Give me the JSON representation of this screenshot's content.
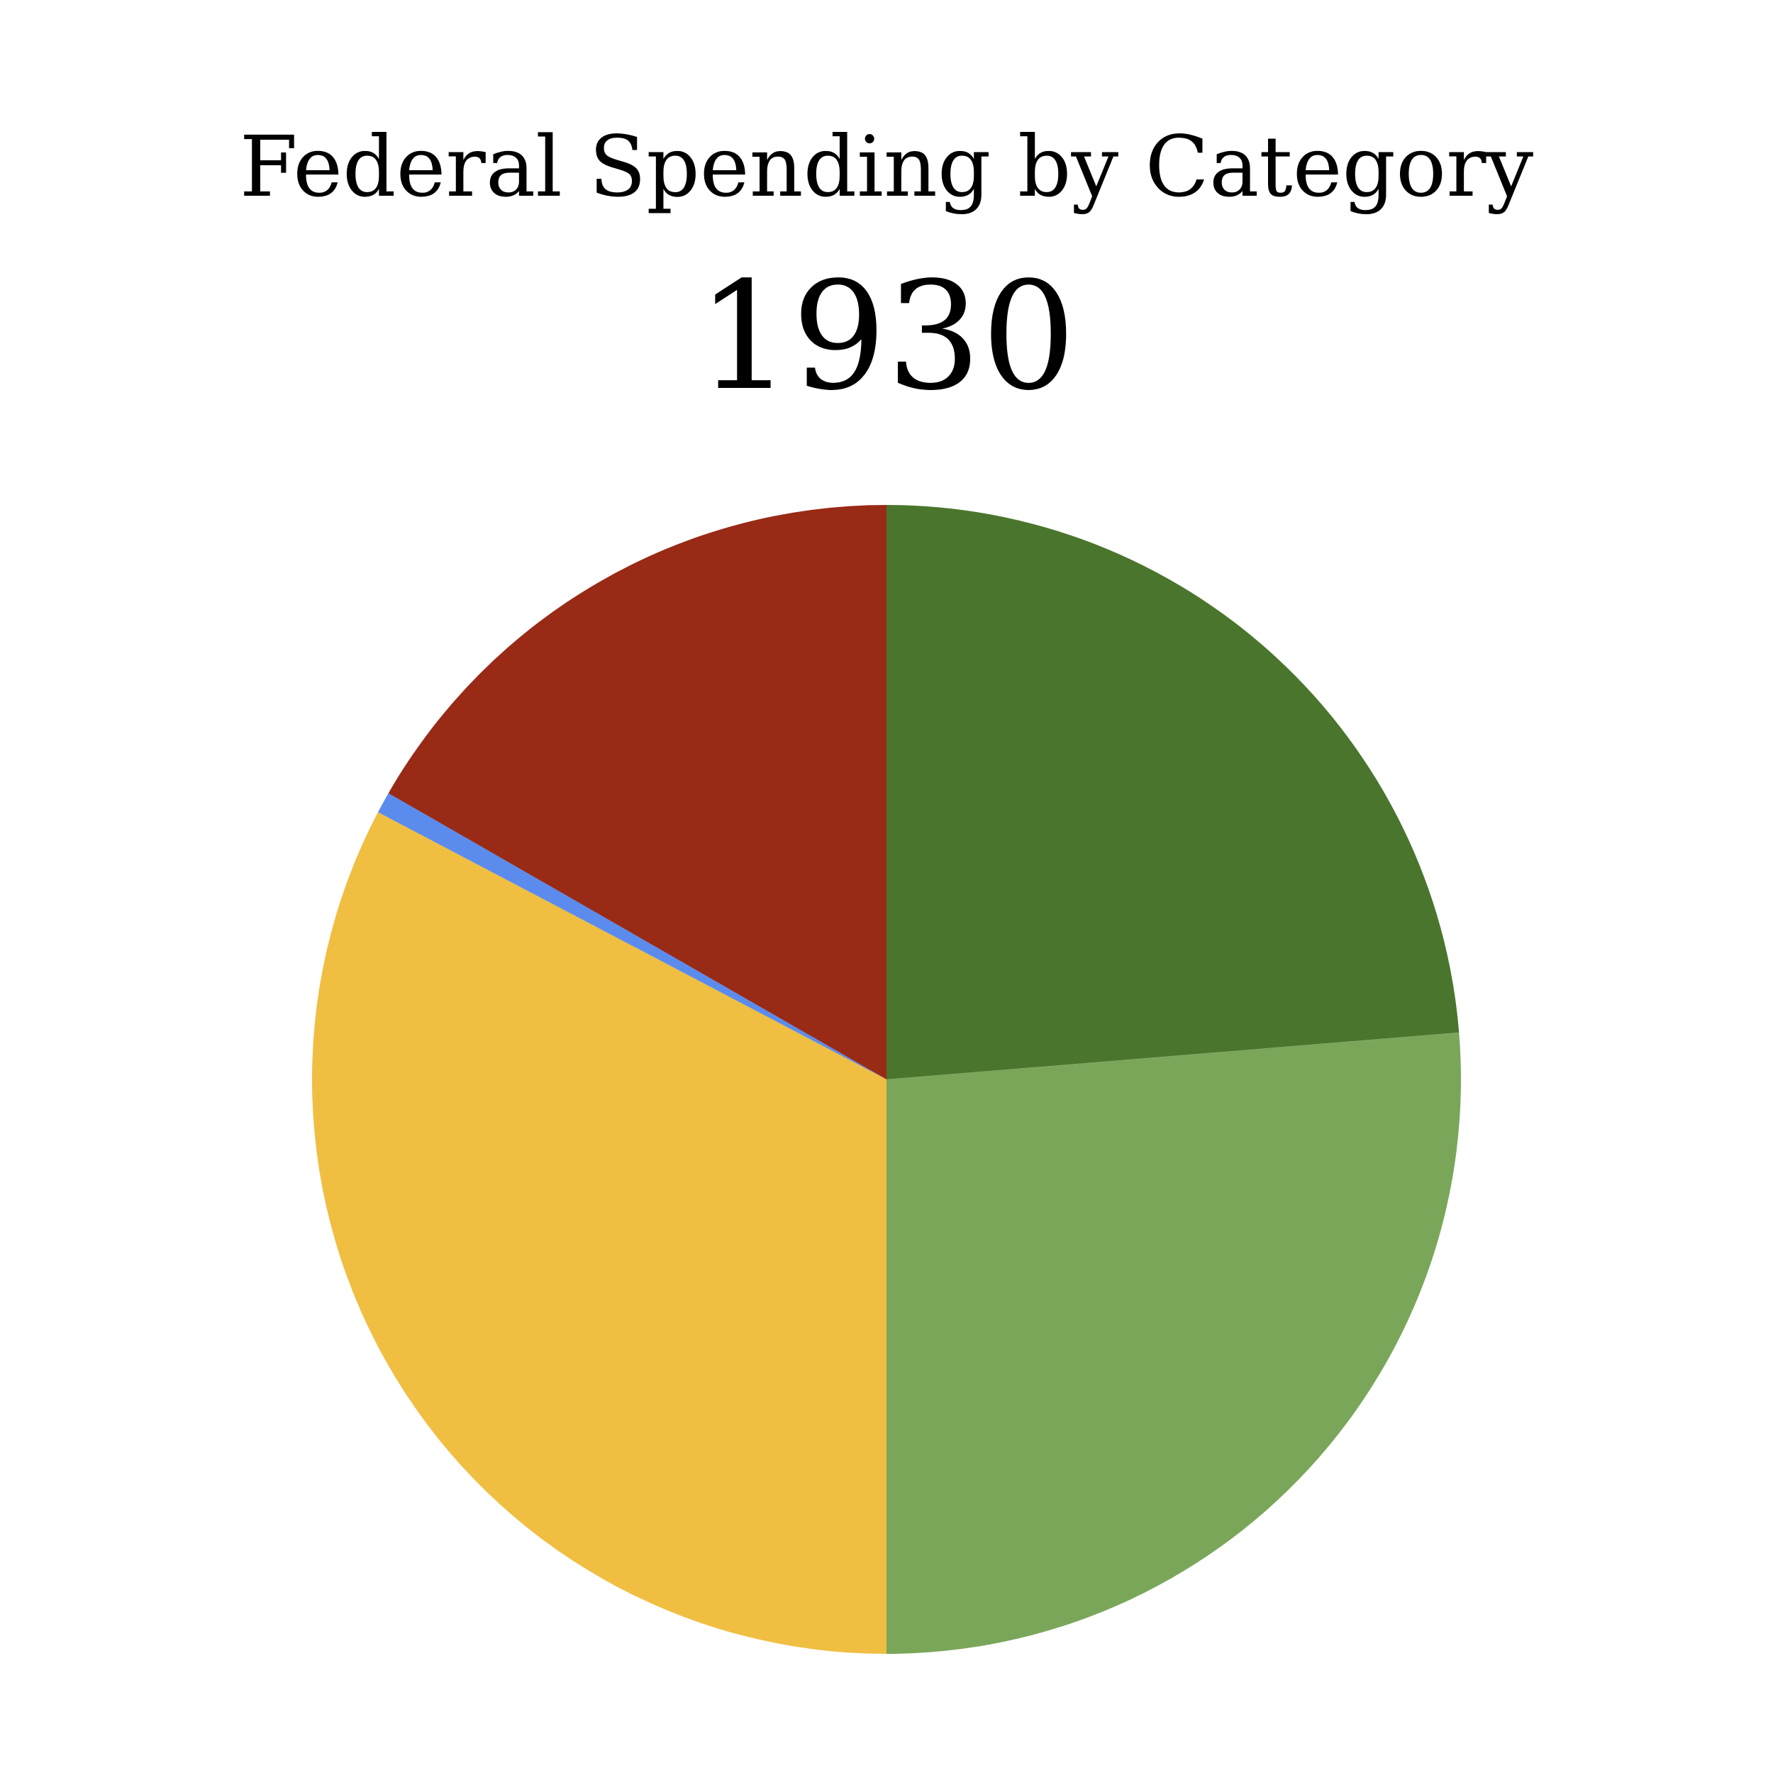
{
  "chart_data": {
    "type": "pie",
    "title": "Federal Spending by Category",
    "subtitle": "1930",
    "start_angle_deg": 0,
    "direction": "clockwise",
    "slices": [
      {
        "value": 23.7,
        "color": "#4a752d"
      },
      {
        "value": 26.3,
        "color": "#7aa65a"
      },
      {
        "value": 32.7,
        "color": "#f0be41"
      },
      {
        "value": 0.6,
        "color": "#5b8ced"
      },
      {
        "value": 16.7,
        "color": "#992a16"
      }
    ]
  }
}
